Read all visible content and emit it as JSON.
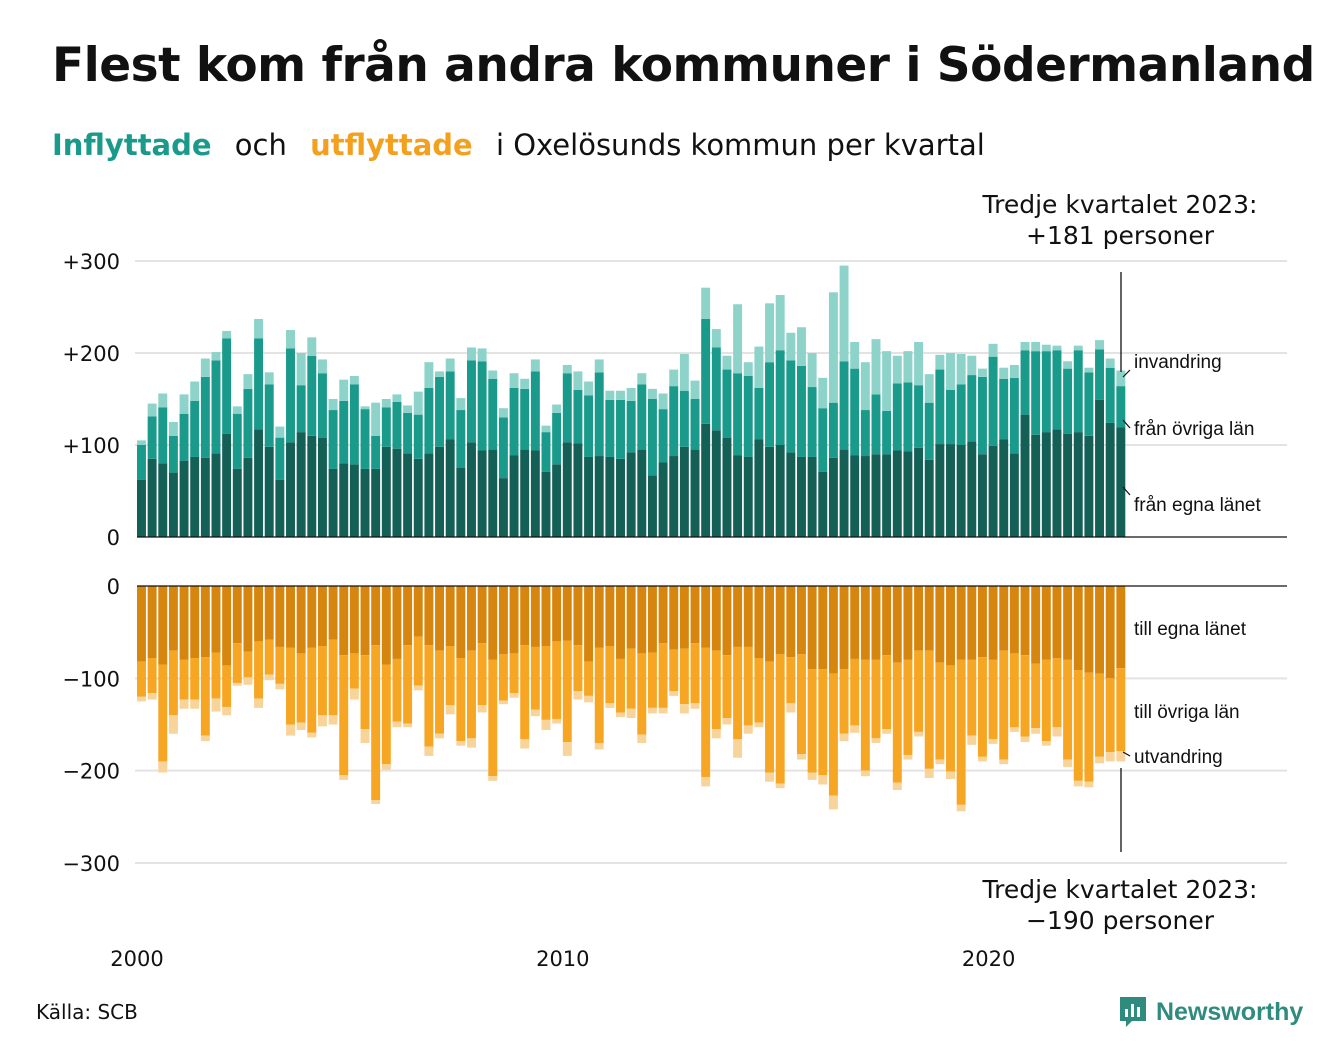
{
  "header": {
    "title": "Flest kom från andra kommuner i Södermanland",
    "subtitle_inflyttade": "Inflyttade",
    "subtitle_och": "och",
    "subtitle_utflyttade": "utflyttade",
    "subtitle_rest": "i Oxelösunds  kommun  per  kvartal"
  },
  "footer": {
    "source": "Källa: SCB",
    "logo_text": "Newsworthy"
  },
  "colors": {
    "in_egna": "#145f56",
    "in_ovriga": "#1a9a8a",
    "in_invandring": "#8dd3c9",
    "ut_egna": "#d6860f",
    "ut_ovriga": "#f6a623",
    "ut_utvandring": "#f8d49a",
    "grid": "#e3e3e3",
    "logo": "#2e8b7e"
  },
  "chart_data": {
    "type": "bar",
    "stacked": true,
    "x_start": "2000 Q1",
    "x_end": "2023 Q3",
    "x_ticks": [
      "2000",
      "2010",
      "2020"
    ],
    "top_panel": {
      "y_ticks": [
        "+300",
        "+200",
        "+100",
        "0"
      ],
      "ylim": [
        0,
        300
      ],
      "series_labels": [
        "invandring",
        "från övriga län",
        "från egna länet"
      ],
      "fran_egna_lanet": [
        62,
        85,
        80,
        70,
        83,
        87,
        86,
        91,
        112,
        74,
        86,
        117,
        98,
        62,
        103,
        114,
        110,
        108,
        74,
        80,
        79,
        74,
        74,
        98,
        96,
        91,
        85,
        91,
        98,
        106,
        75,
        103,
        94,
        95,
        64,
        89,
        95,
        94,
        71,
        79,
        103,
        102,
        87,
        88,
        87,
        85,
        92,
        95,
        67,
        81,
        88,
        98,
        95,
        123,
        116,
        108,
        89,
        87,
        106,
        98,
        100,
        92,
        87,
        87,
        71,
        86,
        95,
        89,
        88,
        90,
        90,
        94,
        93,
        97,
        84,
        101,
        101,
        100,
        104,
        90,
        99,
        106,
        91,
        133,
        111,
        114,
        117,
        112,
        114,
        110,
        149,
        124,
        119
      ],
      "fran_ovriga_lan": [
        38,
        46,
        61,
        40,
        51,
        61,
        88,
        101,
        104,
        60,
        75,
        99,
        68,
        46,
        102,
        51,
        87,
        70,
        64,
        68,
        87,
        65,
        36,
        43,
        51,
        44,
        48,
        71,
        76,
        74,
        63,
        89,
        97,
        77,
        66,
        73,
        66,
        86,
        43,
        56,
        75,
        58,
        67,
        91,
        62,
        64,
        56,
        71,
        83,
        58,
        76,
        61,
        55,
        114,
        90,
        74,
        89,
        88,
        56,
        92,
        103,
        100,
        99,
        76,
        69,
        60,
        96,
        94,
        50,
        65,
        47,
        73,
        75,
        68,
        62,
        81,
        59,
        66,
        72,
        84,
        97,
        66,
        82,
        70,
        91,
        88,
        86,
        71,
        89,
        69,
        55,
        60,
        45
      ],
      "invandring": [
        5,
        14,
        15,
        15,
        21,
        21,
        20,
        9,
        8,
        8,
        16,
        21,
        13,
        12,
        20,
        35,
        20,
        15,
        12,
        23,
        9,
        3,
        36,
        9,
        8,
        8,
        25,
        28,
        6,
        14,
        13,
        14,
        14,
        9,
        10,
        16,
        11,
        13,
        7,
        9,
        9,
        20,
        15,
        14,
        10,
        10,
        14,
        12,
        11,
        17,
        18,
        40,
        20,
        34,
        20,
        15,
        75,
        15,
        45,
        64,
        60,
        30,
        42,
        37,
        33,
        120,
        104,
        29,
        52,
        60,
        65,
        30,
        34,
        47,
        31,
        16,
        40,
        33,
        21,
        9,
        14,
        12,
        14,
        9,
        10,
        7,
        5,
        8,
        5,
        5,
        10,
        10,
        17
      ]
    },
    "bottom_panel": {
      "y_ticks": [
        "0",
        "−100",
        "−200",
        "−300"
      ],
      "ylim": [
        -300,
        0
      ],
      "series_labels": [
        "till egna länet",
        "till övriga län",
        "utvandring"
      ],
      "till_egna_lanet": [
        -82,
        -78,
        -85,
        -70,
        -80,
        -78,
        -77,
        -72,
        -86,
        -62,
        -71,
        -60,
        -58,
        -66,
        -67,
        -73,
        -67,
        -65,
        -58,
        -75,
        -73,
        -75,
        -64,
        -85,
        -79,
        -64,
        -55,
        -64,
        -70,
        -65,
        -78,
        -70,
        -62,
        -80,
        -74,
        -73,
        -64,
        -66,
        -65,
        -60,
        -59,
        -64,
        -82,
        -67,
        -65,
        -79,
        -68,
        -73,
        -72,
        -62,
        -69,
        -68,
        -62,
        -67,
        -70,
        -75,
        -66,
        -66,
        -78,
        -82,
        -74,
        -77,
        -74,
        -90,
        -90,
        -95,
        -90,
        -79,
        -80,
        -80,
        -75,
        -83,
        -80,
        -70,
        -70,
        -83,
        -86,
        -80,
        -80,
        -77,
        -80,
        -70,
        -73,
        -75,
        -84,
        -80,
        -78,
        -80,
        -91,
        -94,
        -95,
        -100,
        -89
      ],
      "till_ovriga_lan": [
        -38,
        -38,
        -105,
        -70,
        -43,
        -45,
        -85,
        -50,
        -45,
        -43,
        -28,
        -62,
        -38,
        -40,
        -83,
        -75,
        -92,
        -75,
        -82,
        -130,
        -38,
        -80,
        -168,
        -108,
        -68,
        -85,
        -53,
        -110,
        -90,
        -64,
        -90,
        -95,
        -67,
        -126,
        -50,
        -43,
        -102,
        -68,
        -80,
        -84,
        -110,
        -50,
        -37,
        -103,
        -62,
        -58,
        -65,
        -88,
        -60,
        -70,
        -45,
        -60,
        -65,
        -140,
        -85,
        -68,
        -100,
        -85,
        -70,
        -120,
        -140,
        -50,
        -108,
        -112,
        -115,
        -132,
        -70,
        -72,
        -120,
        -85,
        -80,
        -130,
        -103,
        -88,
        -128,
        -105,
        -115,
        -157,
        -82,
        -108,
        -86,
        -118,
        -80,
        -88,
        -70,
        -88,
        -75,
        -108,
        -120,
        -118,
        -90,
        -80,
        -90
      ],
      "utvandring": [
        -5,
        -7,
        -12,
        -20,
        -10,
        -10,
        -6,
        -14,
        -9,
        -3,
        -8,
        -10,
        -6,
        -6,
        -12,
        -8,
        -5,
        -12,
        -10,
        -5,
        -12,
        -15,
        -4,
        -6,
        -6,
        -4,
        -5,
        -10,
        -5,
        -10,
        -5,
        -10,
        -8,
        -5,
        -4,
        -5,
        -10,
        -7,
        -11,
        -5,
        -15,
        -9,
        -7,
        -7,
        -5,
        -5,
        -10,
        -9,
        -6,
        -6,
        -5,
        -10,
        -6,
        -10,
        -10,
        -7,
        -20,
        -9,
        -5,
        -10,
        -5,
        -10,
        -6,
        -8,
        -10,
        -15,
        -8,
        -8,
        -6,
        -5,
        -5,
        -8,
        -5,
        -5,
        -10,
        -5,
        -8,
        -7,
        -10,
        -5,
        -5,
        -5,
        -5,
        -6,
        -6,
        -5,
        -10,
        -8,
        -6,
        -6,
        -7,
        -10,
        -11
      ]
    },
    "annotations": {
      "top_line1": "Tredje kvartalet 2023:",
      "top_line2": "+181 personer",
      "bottom_line1": "Tredje kvartalet 2023:",
      "bottom_line2": "−190 personer"
    }
  }
}
